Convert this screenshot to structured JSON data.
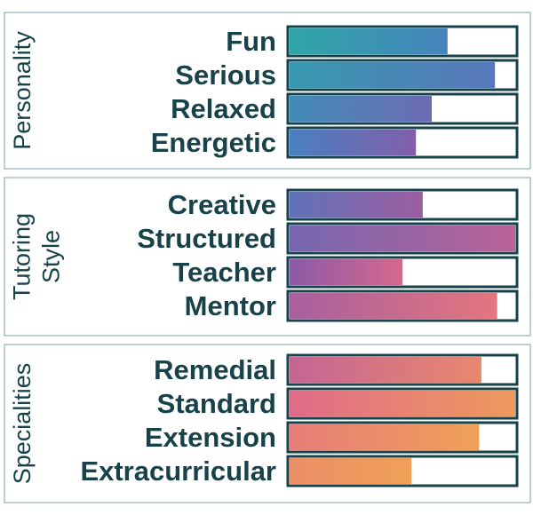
{
  "sections": [
    {
      "title": [
        "Personality"
      ],
      "items": [
        {
          "label": "Fun",
          "value": 70
        },
        {
          "label": "Serious",
          "value": 91
        },
        {
          "label": "Relaxed",
          "value": 63
        },
        {
          "label": "Energetic",
          "value": 56
        }
      ]
    },
    {
      "title": [
        "Tutoring",
        "Style"
      ],
      "items": [
        {
          "label": "Creative",
          "value": 59
        },
        {
          "label": "Structured",
          "value": 100
        },
        {
          "label": "Teacher",
          "value": 50
        },
        {
          "label": "Mentor",
          "value": 92
        }
      ]
    },
    {
      "title": [
        "Specialities"
      ],
      "items": [
        {
          "label": "Remedial",
          "value": 85
        },
        {
          "label": "Standard",
          "value": 100
        },
        {
          "label": "Extension",
          "value": 84
        },
        {
          "label": "Extracurricular",
          "value": 54
        }
      ]
    }
  ]
}
